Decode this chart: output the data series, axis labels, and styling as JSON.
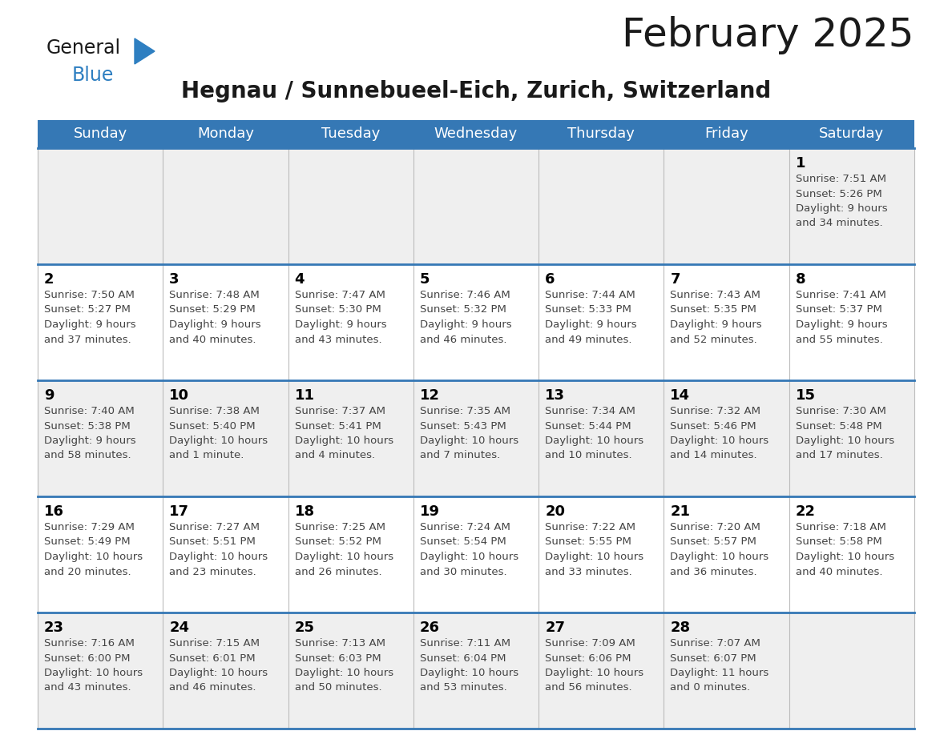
{
  "title": "February 2025",
  "subtitle": "Hegnau / Sunnebueel-Eich, Zurich, Switzerland",
  "header_bg_color": "#3578B5",
  "header_text_color": "#FFFFFF",
  "cell_bg_even": "#EFEFEF",
  "cell_bg_odd": "#FFFFFF",
  "day_number_color": "#000000",
  "info_text_color": "#444444",
  "border_color": "#3578B5",
  "col_border_color": "#BBBBBB",
  "days_of_week": [
    "Sunday",
    "Monday",
    "Tuesday",
    "Wednesday",
    "Thursday",
    "Friday",
    "Saturday"
  ],
  "weeks": [
    [
      {
        "day": null,
        "info": null
      },
      {
        "day": null,
        "info": null
      },
      {
        "day": null,
        "info": null
      },
      {
        "day": null,
        "info": null
      },
      {
        "day": null,
        "info": null
      },
      {
        "day": null,
        "info": null
      },
      {
        "day": 1,
        "info": "Sunrise: 7:51 AM\nSunset: 5:26 PM\nDaylight: 9 hours\nand 34 minutes."
      }
    ],
    [
      {
        "day": 2,
        "info": "Sunrise: 7:50 AM\nSunset: 5:27 PM\nDaylight: 9 hours\nand 37 minutes."
      },
      {
        "day": 3,
        "info": "Sunrise: 7:48 AM\nSunset: 5:29 PM\nDaylight: 9 hours\nand 40 minutes."
      },
      {
        "day": 4,
        "info": "Sunrise: 7:47 AM\nSunset: 5:30 PM\nDaylight: 9 hours\nand 43 minutes."
      },
      {
        "day": 5,
        "info": "Sunrise: 7:46 AM\nSunset: 5:32 PM\nDaylight: 9 hours\nand 46 minutes."
      },
      {
        "day": 6,
        "info": "Sunrise: 7:44 AM\nSunset: 5:33 PM\nDaylight: 9 hours\nand 49 minutes."
      },
      {
        "day": 7,
        "info": "Sunrise: 7:43 AM\nSunset: 5:35 PM\nDaylight: 9 hours\nand 52 minutes."
      },
      {
        "day": 8,
        "info": "Sunrise: 7:41 AM\nSunset: 5:37 PM\nDaylight: 9 hours\nand 55 minutes."
      }
    ],
    [
      {
        "day": 9,
        "info": "Sunrise: 7:40 AM\nSunset: 5:38 PM\nDaylight: 9 hours\nand 58 minutes."
      },
      {
        "day": 10,
        "info": "Sunrise: 7:38 AM\nSunset: 5:40 PM\nDaylight: 10 hours\nand 1 minute."
      },
      {
        "day": 11,
        "info": "Sunrise: 7:37 AM\nSunset: 5:41 PM\nDaylight: 10 hours\nand 4 minutes."
      },
      {
        "day": 12,
        "info": "Sunrise: 7:35 AM\nSunset: 5:43 PM\nDaylight: 10 hours\nand 7 minutes."
      },
      {
        "day": 13,
        "info": "Sunrise: 7:34 AM\nSunset: 5:44 PM\nDaylight: 10 hours\nand 10 minutes."
      },
      {
        "day": 14,
        "info": "Sunrise: 7:32 AM\nSunset: 5:46 PM\nDaylight: 10 hours\nand 14 minutes."
      },
      {
        "day": 15,
        "info": "Sunrise: 7:30 AM\nSunset: 5:48 PM\nDaylight: 10 hours\nand 17 minutes."
      }
    ],
    [
      {
        "day": 16,
        "info": "Sunrise: 7:29 AM\nSunset: 5:49 PM\nDaylight: 10 hours\nand 20 minutes."
      },
      {
        "day": 17,
        "info": "Sunrise: 7:27 AM\nSunset: 5:51 PM\nDaylight: 10 hours\nand 23 minutes."
      },
      {
        "day": 18,
        "info": "Sunrise: 7:25 AM\nSunset: 5:52 PM\nDaylight: 10 hours\nand 26 minutes."
      },
      {
        "day": 19,
        "info": "Sunrise: 7:24 AM\nSunset: 5:54 PM\nDaylight: 10 hours\nand 30 minutes."
      },
      {
        "day": 20,
        "info": "Sunrise: 7:22 AM\nSunset: 5:55 PM\nDaylight: 10 hours\nand 33 minutes."
      },
      {
        "day": 21,
        "info": "Sunrise: 7:20 AM\nSunset: 5:57 PM\nDaylight: 10 hours\nand 36 minutes."
      },
      {
        "day": 22,
        "info": "Sunrise: 7:18 AM\nSunset: 5:58 PM\nDaylight: 10 hours\nand 40 minutes."
      }
    ],
    [
      {
        "day": 23,
        "info": "Sunrise: 7:16 AM\nSunset: 6:00 PM\nDaylight: 10 hours\nand 43 minutes."
      },
      {
        "day": 24,
        "info": "Sunrise: 7:15 AM\nSunset: 6:01 PM\nDaylight: 10 hours\nand 46 minutes."
      },
      {
        "day": 25,
        "info": "Sunrise: 7:13 AM\nSunset: 6:03 PM\nDaylight: 10 hours\nand 50 minutes."
      },
      {
        "day": 26,
        "info": "Sunrise: 7:11 AM\nSunset: 6:04 PM\nDaylight: 10 hours\nand 53 minutes."
      },
      {
        "day": 27,
        "info": "Sunrise: 7:09 AM\nSunset: 6:06 PM\nDaylight: 10 hours\nand 56 minutes."
      },
      {
        "day": 28,
        "info": "Sunrise: 7:07 AM\nSunset: 6:07 PM\nDaylight: 11 hours\nand 0 minutes."
      },
      {
        "day": null,
        "info": null
      }
    ]
  ],
  "logo_color_general": "#1a1a1a",
  "logo_color_blue": "#2E7FC1",
  "logo_triangle_color": "#2E7FC1",
  "title_fontsize": 36,
  "subtitle_fontsize": 20,
  "header_fontsize": 13,
  "day_num_fontsize": 13,
  "info_fontsize": 9.5
}
